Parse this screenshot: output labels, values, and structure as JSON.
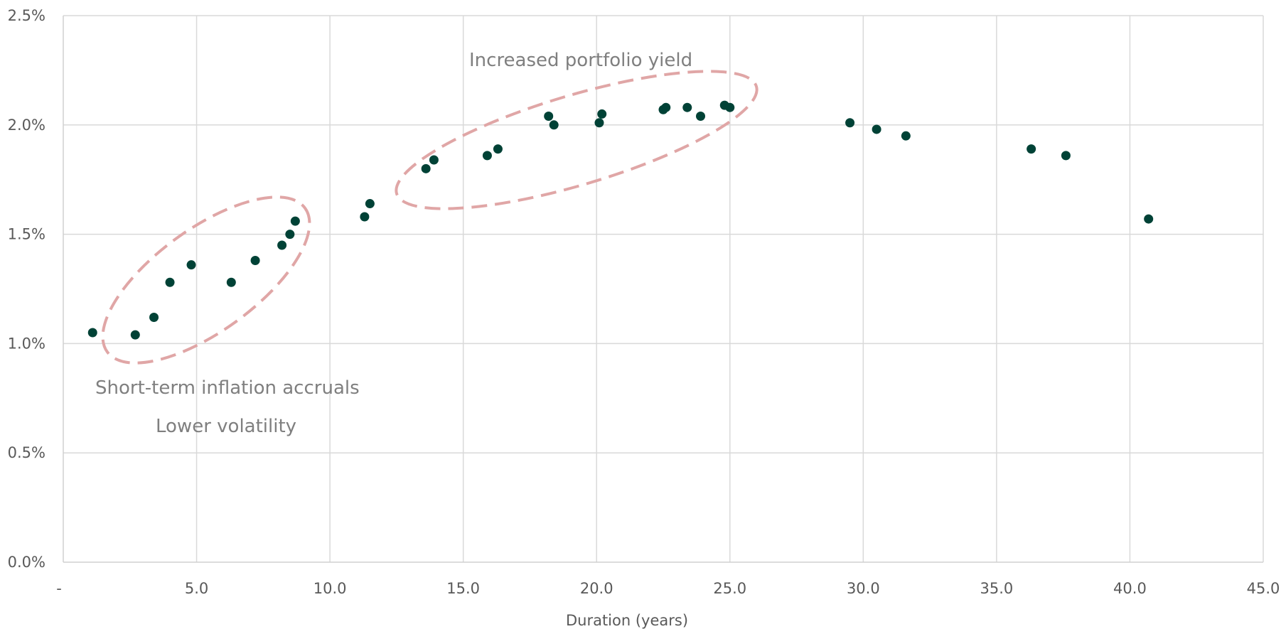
{
  "chart_data": {
    "type": "scatter",
    "title": "",
    "xlabel": "Duration (years)",
    "ylabel": "",
    "xlim": [
      0,
      45
    ],
    "ylim": [
      0,
      2.5
    ],
    "x_ticks": [
      0,
      5,
      10,
      15,
      20,
      25,
      30,
      35,
      40,
      45
    ],
    "x_tick_labels": [
      "-",
      "5.0",
      "10.0",
      "15.0",
      "20.0",
      "25.0",
      "30.0",
      "35.0",
      "40.0",
      "45.0"
    ],
    "y_ticks": [
      0,
      0.5,
      1.0,
      1.5,
      2.0,
      2.5
    ],
    "y_tick_labels": [
      "0.0%",
      "0.5%",
      "1.0%",
      "1.5%",
      "2.0%",
      "2.5%"
    ],
    "grid": true,
    "marker_color": "#004236",
    "points": [
      {
        "x": 1.1,
        "y": 1.05
      },
      {
        "x": 2.7,
        "y": 1.04
      },
      {
        "x": 3.4,
        "y": 1.12
      },
      {
        "x": 4.0,
        "y": 1.28
      },
      {
        "x": 4.8,
        "y": 1.36
      },
      {
        "x": 6.3,
        "y": 1.28
      },
      {
        "x": 7.2,
        "y": 1.38
      },
      {
        "x": 8.2,
        "y": 1.45
      },
      {
        "x": 8.5,
        "y": 1.5
      },
      {
        "x": 8.7,
        "y": 1.56
      },
      {
        "x": 11.3,
        "y": 1.58
      },
      {
        "x": 11.5,
        "y": 1.64
      },
      {
        "x": 13.6,
        "y": 1.8
      },
      {
        "x": 13.9,
        "y": 1.84
      },
      {
        "x": 15.9,
        "y": 1.86
      },
      {
        "x": 16.3,
        "y": 1.89
      },
      {
        "x": 18.2,
        "y": 2.04
      },
      {
        "x": 18.4,
        "y": 2.0
      },
      {
        "x": 20.1,
        "y": 2.01
      },
      {
        "x": 20.2,
        "y": 2.05
      },
      {
        "x": 22.5,
        "y": 2.07
      },
      {
        "x": 22.6,
        "y": 2.08
      },
      {
        "x": 23.4,
        "y": 2.08
      },
      {
        "x": 23.9,
        "y": 2.04
      },
      {
        "x": 24.8,
        "y": 2.09
      },
      {
        "x": 25.0,
        "y": 2.08
      },
      {
        "x": 29.5,
        "y": 2.01
      },
      {
        "x": 30.5,
        "y": 1.98
      },
      {
        "x": 31.6,
        "y": 1.95
      },
      {
        "x": 36.3,
        "y": 1.89
      },
      {
        "x": 37.6,
        "y": 1.86
      },
      {
        "x": 40.7,
        "y": 1.57
      }
    ],
    "annotations": [
      {
        "text": "Increased portfolio yield"
      },
      {
        "text": "Short-term inflation accruals"
      },
      {
        "text": "Lower volatility"
      }
    ],
    "highlight_color": "#e0a6a6"
  }
}
